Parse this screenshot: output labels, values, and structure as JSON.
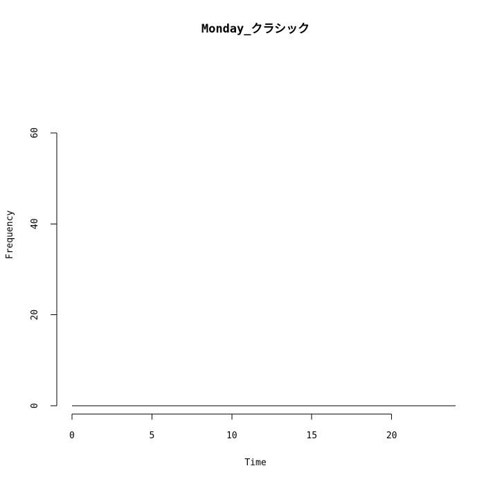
{
  "chart_data": {
    "type": "line",
    "title": "Monday_クラシック",
    "xlabel": "Time",
    "ylabel": "Frequency",
    "xlim": [
      -0.95,
      24.0
    ],
    "ylim": [
      -1.5,
      61.5
    ],
    "x_ticks": [
      0,
      5,
      10,
      15,
      20
    ],
    "x_tick_labels": [
      "0",
      "5",
      "10",
      "15",
      "20"
    ],
    "y_ticks": [
      0,
      20,
      40,
      60
    ],
    "y_tick_labels": [
      "0",
      "20",
      "40",
      "60"
    ],
    "grid": false,
    "series": [
      {
        "x": [
          0,
          24
        ],
        "y": [
          0,
          0
        ],
        "color": "#000000"
      }
    ]
  }
}
